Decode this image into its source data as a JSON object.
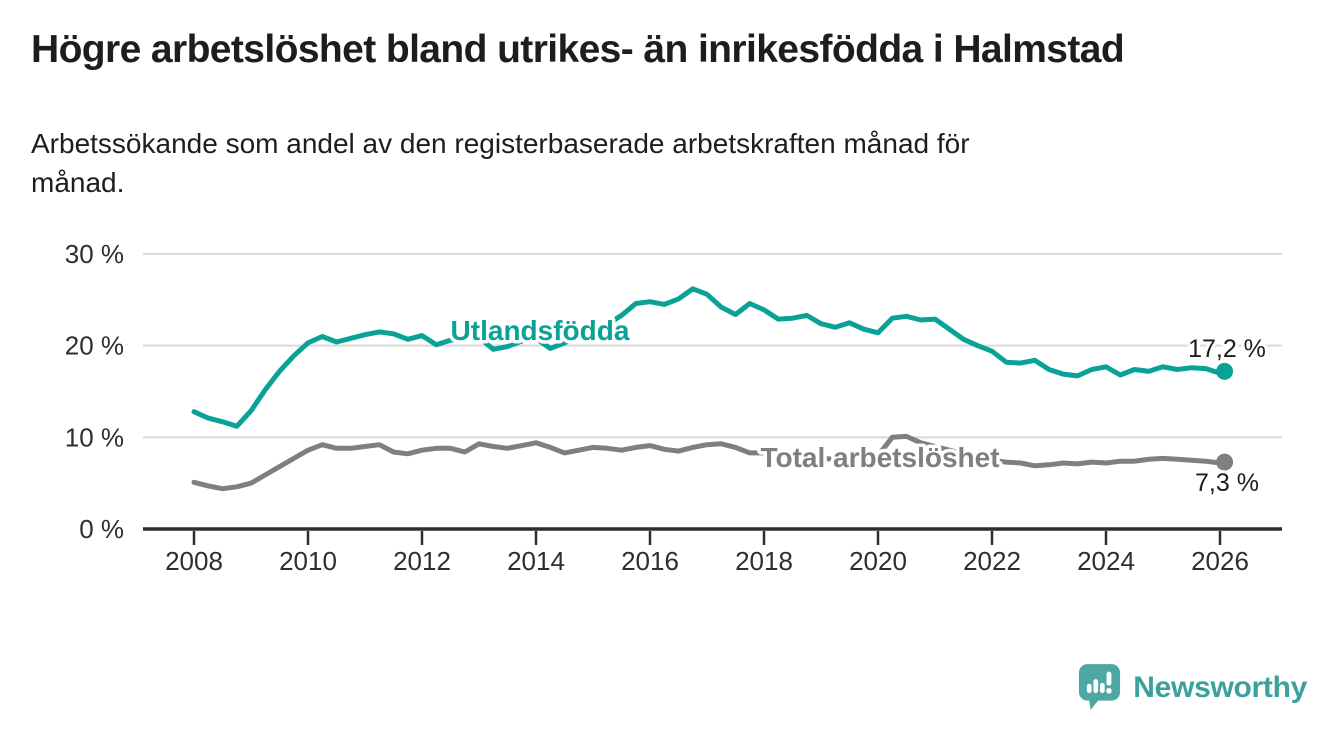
{
  "header": {
    "title": "Högre arbetslöshet bland utrikes- än inrikesfödda i Halmstad",
    "subtitle_line1": "Arbetssökande som andel av den registerbaserade arbetskraften månad för",
    "subtitle_line2": "månad."
  },
  "chart_data": {
    "type": "line",
    "title": "Högre arbetslöshet bland utrikes- än inrikesfödda i Halmstad",
    "subtitle": "Arbetssökande som andel av den registerbaserade arbetskraften månad för månad.",
    "xlabel": "",
    "ylabel": "%",
    "ylim": [
      0,
      30
    ],
    "yticks": [
      0,
      10,
      20,
      30
    ],
    "ytick_labels": [
      "0 %",
      "10 %",
      "20 %",
      "30 %"
    ],
    "xticks": [
      2008,
      2010,
      2012,
      2014,
      2016,
      2018,
      2020,
      2022,
      2024,
      2026
    ],
    "grid": "horizontal",
    "legend_position": "inline-labels",
    "x": [
      2008,
      2008.25,
      2008.5,
      2008.75,
      2009,
      2009.25,
      2009.5,
      2009.75,
      2010,
      2010.25,
      2010.5,
      2010.75,
      2011,
      2011.25,
      2011.5,
      2011.75,
      2012,
      2012.25,
      2012.5,
      2012.75,
      2013,
      2013.25,
      2013.5,
      2013.75,
      2014,
      2014.25,
      2014.5,
      2014.75,
      2015,
      2015.25,
      2015.5,
      2015.75,
      2016,
      2016.25,
      2016.5,
      2016.75,
      2017,
      2017.25,
      2017.5,
      2017.75,
      2018,
      2018.25,
      2018.5,
      2018.75,
      2019,
      2019.25,
      2019.5,
      2019.75,
      2020,
      2020.25,
      2020.5,
      2020.75,
      2021,
      2021.25,
      2021.5,
      2021.75,
      2022,
      2022.25,
      2022.5,
      2022.75,
      2023,
      2023.25,
      2023.5,
      2023.75,
      2024,
      2024.25,
      2024.5,
      2024.75,
      2025,
      2025.25,
      2025.5,
      2025.75,
      2026,
      2026.08
    ],
    "series": [
      {
        "name": "Utlandsfödda",
        "color": "#0aa296",
        "end_value": 17.2,
        "end_label": "17,2 %",
        "values": [
          12.8,
          12.1,
          11.7,
          11.2,
          12.9,
          15.2,
          17.2,
          18.9,
          20.3,
          21.0,
          20.4,
          20.8,
          21.2,
          21.5,
          21.3,
          20.7,
          21.1,
          20.1,
          20.6,
          20.8,
          20.9,
          19.6,
          19.9,
          20.5,
          20.8,
          19.7,
          20.3,
          21.0,
          21.4,
          22.3,
          23.3,
          24.6,
          24.8,
          24.5,
          25.1,
          26.2,
          25.6,
          24.2,
          23.4,
          24.6,
          23.9,
          22.9,
          23.0,
          23.3,
          22.4,
          22.0,
          22.5,
          21.8,
          21.4,
          23.0,
          23.2,
          22.8,
          22.9,
          21.8,
          20.7,
          20.0,
          19.4,
          18.2,
          18.1,
          18.4,
          17.4,
          16.9,
          16.7,
          17.4,
          17.7,
          16.8,
          17.4,
          17.2,
          17.7,
          17.4,
          17.6,
          17.5,
          17.0,
          17.2
        ]
      },
      {
        "name": "Total arbetslöshet",
        "color": "#7e7e83",
        "end_value": 7.3,
        "end_label": "7,3 %",
        "values": [
          5.1,
          4.7,
          4.4,
          4.6,
          5.0,
          5.9,
          6.8,
          7.7,
          8.6,
          9.2,
          8.8,
          8.8,
          9.0,
          9.2,
          8.4,
          8.2,
          8.6,
          8.8,
          8.8,
          8.4,
          9.3,
          9.0,
          8.8,
          9.1,
          9.4,
          8.9,
          8.3,
          8.6,
          8.9,
          8.8,
          8.6,
          8.9,
          9.1,
          8.7,
          8.5,
          8.9,
          9.2,
          9.3,
          8.9,
          8.3,
          8.3,
          8.5,
          8.2,
          7.9,
          7.7,
          7.6,
          7.8,
          7.6,
          8.0,
          10.0,
          10.1,
          9.4,
          9.0,
          8.6,
          8.2,
          7.8,
          7.5,
          7.3,
          7.2,
          6.9,
          7.0,
          7.2,
          7.1,
          7.3,
          7.2,
          7.4,
          7.4,
          7.6,
          7.7,
          7.6,
          7.5,
          7.4,
          7.2,
          7.3
        ]
      }
    ]
  },
  "footer": {
    "brand": "Newsworthy",
    "logo_icon": "newsworthy-speech-bubble-bar-chart-icon",
    "brand_color": "#3ca09e"
  },
  "colors": {
    "series_utlandsfodda": "#0aa296",
    "series_total": "#7e7e83",
    "gridline": "#d9d9d9",
    "axis": "#2d2d2d",
    "text": "#1d1d1b"
  }
}
